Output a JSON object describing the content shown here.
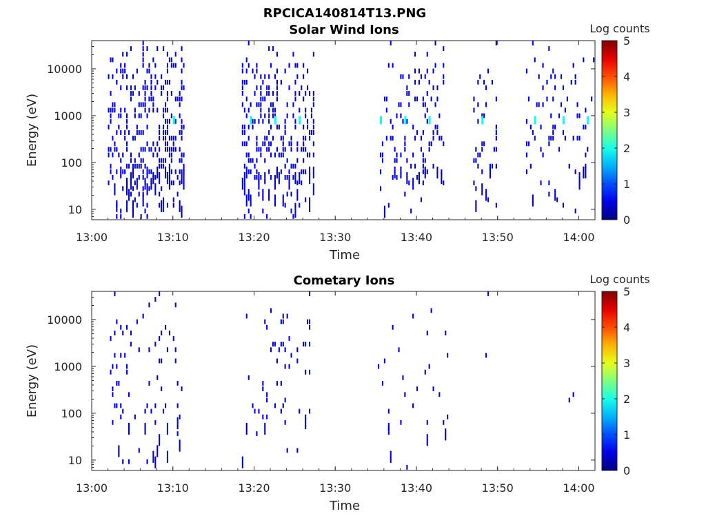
{
  "figure_title": "RPCICA140814T13.PNG",
  "chart_data": [
    {
      "type": "heatmap",
      "title": "Solar Wind Ions",
      "xlabel": "Time",
      "ylabel": "Energy (eV)",
      "x_ticks": [
        "13:00",
        "13:10",
        "13:20",
        "13:30",
        "13:40",
        "13:50",
        "14:00"
      ],
      "xlim": [
        "13:00",
        "14:02"
      ],
      "y_ticks": [
        "10",
        "100",
        "1000",
        "10000"
      ],
      "ylim": [
        6,
        40000
      ],
      "y_scale": "log",
      "colorbar": {
        "label": "Log counts",
        "min": 0,
        "max": 5,
        "ticks": [
          "0",
          "1",
          "2",
          "3",
          "4",
          "5"
        ],
        "colormap": "jet"
      },
      "bursts": [
        {
          "start": "13:02",
          "end": "13:11.5",
          "density": 0.28
        },
        {
          "start": "13:18.5",
          "end": "13:27.5",
          "density": 0.24
        },
        {
          "start": "13:35.5",
          "end": "13:43.5",
          "density": 0.12
        },
        {
          "start": "13:47",
          "end": "13:50",
          "density": 0.1
        },
        {
          "start": "13:53.5",
          "end": "14:02",
          "density": 0.07
        }
      ],
      "highlights": [
        {
          "time": "13:10",
          "energy": 800,
          "log_counts": 1.9
        },
        {
          "time": "13:19.5",
          "energy": 800,
          "log_counts": 1.9
        },
        {
          "time": "13:22.5",
          "energy": 800,
          "log_counts": 1.9
        },
        {
          "time": "13:25.5",
          "energy": 800,
          "log_counts": 1.9
        },
        {
          "time": "13:35.5",
          "energy": 800,
          "log_counts": 1.9
        },
        {
          "time": "13:38.5",
          "energy": 800,
          "log_counts": 1.9
        },
        {
          "time": "13:41.5",
          "energy": 800,
          "log_counts": 1.9
        },
        {
          "time": "13:48",
          "energy": 800,
          "log_counts": 1.9
        },
        {
          "time": "13:54.5",
          "energy": 800,
          "log_counts": 1.9
        },
        {
          "time": "13:58",
          "energy": 800,
          "log_counts": 1.9
        },
        {
          "time": "14:01",
          "energy": 800,
          "log_counts": 1.9
        }
      ]
    },
    {
      "type": "heatmap",
      "title": "Cometary Ions",
      "xlabel": "Time",
      "ylabel": "Energy (eV)",
      "x_ticks": [
        "13:00",
        "13:10",
        "13:20",
        "13:30",
        "13:40",
        "13:50",
        "14:00"
      ],
      "xlim": [
        "13:00",
        "14:02"
      ],
      "y_ticks": [
        "10",
        "100",
        "1000",
        "10000"
      ],
      "ylim": [
        6,
        40000
      ],
      "y_scale": "log",
      "colorbar": {
        "label": "Log counts",
        "min": 0,
        "max": 5,
        "ticks": [
          "0",
          "1",
          "2",
          "3",
          "4",
          "5"
        ],
        "colormap": "jet"
      },
      "bursts": [
        {
          "start": "13:02",
          "end": "13:11.5",
          "density": 0.07
        },
        {
          "start": "13:18.5",
          "end": "13:27",
          "density": 0.06
        },
        {
          "start": "13:35",
          "end": "13:44",
          "density": 0.02
        },
        {
          "start": "13:47.5",
          "end": "13:49",
          "density": 0.01
        },
        {
          "start": "13:58",
          "end": "14:00",
          "density": 0.01
        }
      ],
      "highlights": []
    }
  ]
}
